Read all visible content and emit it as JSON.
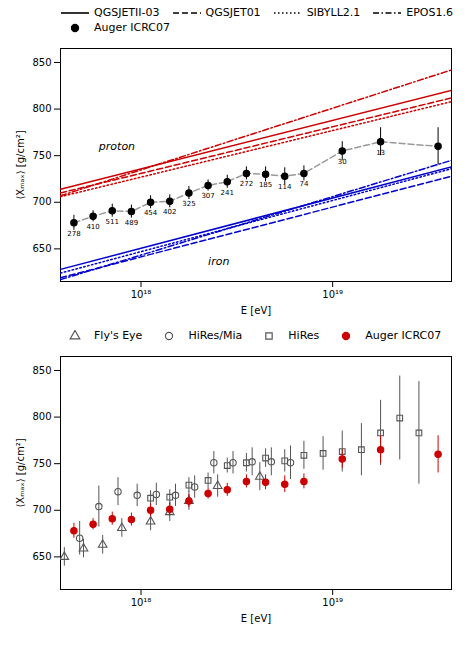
{
  "chart_data": [
    {
      "type": "line",
      "xlabel": "E [eV]",
      "ylabel": "⟨Xₘₐₓ⟩ [g/cm²]",
      "log": "x",
      "xlim": [
        3.801893963205611e+17,
        4.168693834703354e+19
      ],
      "xticks": [
        {
          "value": 1e+18,
          "label": "10¹⁸"
        },
        {
          "value": 1e+19,
          "label": "10¹⁹"
        }
      ],
      "ylim": [
        615,
        865
      ],
      "yticks": [
        650,
        700,
        750,
        800,
        850
      ],
      "legend": "top",
      "series": [
        {
          "name": "QGSJETII-03",
          "type": "line",
          "line_style": "solid",
          "color": "#cc0000",
          "x": [
            3.801893963205611e+17,
            4.168693834703354e+19
          ],
          "values": [
            714,
            820
          ]
        },
        {
          "name": "QGSJET01",
          "type": "line",
          "line_style": "dashed",
          "color": "#cc0000",
          "x": [
            3.801893963205611e+17,
            4.168693834703354e+19
          ],
          "values": [
            710,
            812
          ]
        },
        {
          "name": "SIBYLL2.1",
          "type": "line",
          "line_style": "dotted",
          "color": "#cc0000",
          "x": [
            3.801893963205611e+17,
            4.168693834703354e+19
          ],
          "values": [
            706,
            808
          ]
        },
        {
          "name": "EPOS1.6",
          "type": "line",
          "line_style": "dashdot",
          "color": "#cc0000",
          "x": [
            3.801893963205611e+17,
            4.168693834703354e+19
          ],
          "values": [
            707,
            842
          ]
        },
        {
          "name": "QGSJETII-03",
          "type": "line",
          "line_style": "solid",
          "color": "#0000cc",
          "x": [
            3.801893963205611e+17,
            4.168693834703354e+19
          ],
          "values": [
            628,
            738
          ]
        },
        {
          "name": "QGSJET01",
          "type": "line",
          "line_style": "dashed",
          "color": "#0000cc",
          "x": [
            3.801893963205611e+17,
            4.168693834703354e+19
          ],
          "values": [
            619,
            728
          ]
        },
        {
          "name": "SIBYLL2.1",
          "type": "line",
          "line_style": "dotted",
          "color": "#0000cc",
          "x": [
            3.801893963205611e+17,
            4.168693834703354e+19
          ],
          "values": [
            624,
            736
          ]
        },
        {
          "name": "EPOS1.6",
          "type": "line",
          "line_style": "dashdot",
          "color": "#0000cc",
          "x": [
            3.801893963205611e+17,
            4.168693834703354e+19
          ],
          "values": [
            617,
            745
          ]
        },
        {
          "type": "line",
          "line_style": "dashed",
          "color": "#999999",
          "x": [
            4.466835921509635e+17,
            5.623413251903491e+17,
            7.079457843841379e+17,
            8.912509381337455e+17,
            1.122018454301963e+18,
            1.412537544622754e+18,
            1.778279410038923e+18,
            2.23872113856834e+18,
            2.818382931264454e+18,
            3.548133892335755e+18,
            4.466835921509635e+18,
            5.623413251903491e+18,
            7.079457843841379e+18,
            1.122018454301963e+19,
            1.778279410038923e+19,
            3.548133892335755e+19
          ],
          "values": [
            678,
            685,
            691,
            690,
            700,
            701,
            710,
            718,
            722,
            731,
            730,
            728,
            731,
            755,
            765,
            760
          ]
        },
        {
          "name": "Auger ICRC07",
          "type": "scatter",
          "marker": "circle",
          "color": "#000000",
          "x": [
            4.466835921509635e+17,
            5.623413251903491e+17,
            7.079457843841379e+17,
            8.912509381337455e+17,
            1.122018454301963e+18,
            1.412537544622754e+18,
            1.778279410038923e+18,
            2.23872113856834e+18,
            2.818382931264454e+18,
            3.548133892335755e+18,
            4.466835921509635e+18,
            5.623413251903491e+18,
            7.079457843841379e+18,
            1.122018454301963e+19,
            1.778279410038923e+19,
            3.548133892335755e+19
          ],
          "values": [
            678,
            685,
            691,
            690,
            700,
            701,
            710,
            718,
            722,
            731,
            730,
            728,
            731,
            755,
            765,
            760
          ],
          "yerr": [
            8,
            6,
            7,
            7,
            7,
            7,
            7,
            6,
            7,
            7,
            8,
            9,
            8,
            10,
            15,
            20
          ],
          "counts": [
            278,
            410,
            511,
            489,
            454,
            402,
            325,
            307,
            241,
            272,
            185,
            114,
            74,
            30,
            13,
            null
          ]
        }
      ],
      "annotations": [
        {
          "text": "proton",
          "x": 6.025595860743578e+17,
          "y": 760
        },
        {
          "text": "iron",
          "x": 2.23872113856834e+18,
          "y": 636
        }
      ]
    },
    {
      "type": "scatter",
      "xlabel": "E [eV]",
      "ylabel": "⟨Xₘₐₓ⟩ [g/cm²]",
      "log": "x",
      "xlim": [
        3.801893963205611e+17,
        4.168693834703354e+19
      ],
      "xticks": [
        {
          "value": 1e+18,
          "label": "10¹⁸"
        },
        {
          "value": 1e+19,
          "label": "10¹⁹"
        }
      ],
      "ylim": [
        615,
        865
      ],
      "yticks": [
        650,
        700,
        750,
        800,
        850
      ],
      "legend": "top",
      "series": [
        {
          "name": "Fly's Eye",
          "type": "scatter",
          "marker": "triangle-open",
          "color": "#555555",
          "x": [
            3.981071705534972e+17,
            5.011872336272722e+17,
            6.309573444801933e+17,
            7.943282347242815e+17,
            1.122018454301963e+18,
            1.412537544622754e+18,
            1.778279410038923e+18,
            2.51188643150958e+18,
            4.168693834703354e+18
          ],
          "values": [
            650,
            659,
            663,
            681,
            688,
            698,
            710,
            726,
            736
          ],
          "yerr": [
            10,
            10,
            10,
            10,
            10,
            10,
            10,
            12,
            15
          ]
        },
        {
          "name": "HiRes/Mia",
          "type": "scatter",
          "marker": "circle-open",
          "color": "#555555",
          "x": [
            4.786300923226383e+17,
            6.025595860743578e+17,
            7.585775750291837e+17,
            9.54992586021436e+17,
            1.202264434617413e+18,
            1.513561248436208e+18,
            1.905460717963247e+18,
            2.39883291901949e+18,
            3.019951720402016e+18,
            3.801893963205611e+18,
            4.786300923226383e+18,
            6.025595860743578e+18
          ],
          "values": [
            670,
            704,
            720,
            716,
            717,
            716,
            725,
            751,
            751,
            752,
            752,
            751
          ],
          "yerr": [
            18,
            22,
            15,
            12,
            12,
            12,
            12,
            12,
            12,
            15,
            15,
            18
          ]
        },
        {
          "name": "HiRes",
          "type": "scatter",
          "marker": "square-open",
          "color": "#555555",
          "x": [
            1.122018454301963e+18,
            1.412537544622754e+18,
            1.778279410038923e+18,
            2.23872113856834e+18,
            2.818382931264454e+18,
            3.548133892335755e+18,
            4.466835921509635e+18,
            5.623413251903491e+18,
            7.079457843841379e+18,
            8.912509381337455e+18,
            1.122018454301963e+19,
            1.412537544622754e+19,
            1.778279410038923e+19,
            2.23872113856834e+19,
            2.818382931264454e+19
          ],
          "values": [
            713,
            714,
            727,
            732,
            748,
            751,
            756,
            753,
            759,
            761,
            763,
            765,
            783,
            799,
            783
          ],
          "yerr": [
            8,
            8,
            8,
            8,
            8,
            10,
            10,
            12,
            15,
            18,
            22,
            28,
            35,
            45,
            55
          ]
        },
        {
          "name": "Auger ICRC07",
          "type": "scatter",
          "marker": "circle",
          "color": "#cc0000",
          "x": [
            4.466835921509635e+17,
            5.623413251903491e+17,
            7.079457843841379e+17,
            8.912509381337455e+17,
            1.122018454301963e+18,
            1.412537544622754e+18,
            1.778279410038923e+18,
            2.23872113856834e+18,
            2.818382931264454e+18,
            3.548133892335755e+18,
            4.466835921509635e+18,
            5.623413251903491e+18,
            7.079457843841379e+18,
            1.122018454301963e+19,
            1.778279410038923e+19,
            3.548133892335755e+19
          ],
          "values": [
            678,
            685,
            691,
            690,
            700,
            701,
            710,
            718,
            722,
            731,
            730,
            728,
            731,
            755,
            765,
            760
          ],
          "yerr": [
            8,
            6,
            7,
            7,
            7,
            7,
            7,
            6,
            7,
            7,
            8,
            9,
            8,
            10,
            15,
            20
          ]
        }
      ]
    }
  ]
}
